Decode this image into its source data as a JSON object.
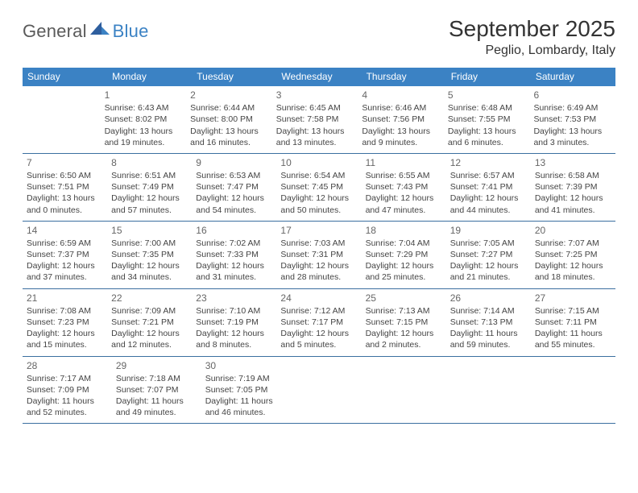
{
  "logo": {
    "general": "General",
    "blue": "Blue"
  },
  "title": "September 2025",
  "location": "Peglio, Lombardy, Italy",
  "colors": {
    "header_bg": "#3b82c4",
    "header_text": "#ffffff",
    "border": "#3b6fa0",
    "text": "#444444",
    "day_number": "#666666",
    "logo_gray": "#5a5a5a",
    "logo_blue": "#3b82c4",
    "background": "#ffffff"
  },
  "weekdays": [
    "Sunday",
    "Monday",
    "Tuesday",
    "Wednesday",
    "Thursday",
    "Friday",
    "Saturday"
  ],
  "weeks": [
    [
      null,
      {
        "n": "1",
        "sr": "Sunrise: 6:43 AM",
        "ss": "Sunset: 8:02 PM",
        "dl1": "Daylight: 13 hours",
        "dl2": "and 19 minutes."
      },
      {
        "n": "2",
        "sr": "Sunrise: 6:44 AM",
        "ss": "Sunset: 8:00 PM",
        "dl1": "Daylight: 13 hours",
        "dl2": "and 16 minutes."
      },
      {
        "n": "3",
        "sr": "Sunrise: 6:45 AM",
        "ss": "Sunset: 7:58 PM",
        "dl1": "Daylight: 13 hours",
        "dl2": "and 13 minutes."
      },
      {
        "n": "4",
        "sr": "Sunrise: 6:46 AM",
        "ss": "Sunset: 7:56 PM",
        "dl1": "Daylight: 13 hours",
        "dl2": "and 9 minutes."
      },
      {
        "n": "5",
        "sr": "Sunrise: 6:48 AM",
        "ss": "Sunset: 7:55 PM",
        "dl1": "Daylight: 13 hours",
        "dl2": "and 6 minutes."
      },
      {
        "n": "6",
        "sr": "Sunrise: 6:49 AM",
        "ss": "Sunset: 7:53 PM",
        "dl1": "Daylight: 13 hours",
        "dl2": "and 3 minutes."
      }
    ],
    [
      {
        "n": "7",
        "sr": "Sunrise: 6:50 AM",
        "ss": "Sunset: 7:51 PM",
        "dl1": "Daylight: 13 hours",
        "dl2": "and 0 minutes."
      },
      {
        "n": "8",
        "sr": "Sunrise: 6:51 AM",
        "ss": "Sunset: 7:49 PM",
        "dl1": "Daylight: 12 hours",
        "dl2": "and 57 minutes."
      },
      {
        "n": "9",
        "sr": "Sunrise: 6:53 AM",
        "ss": "Sunset: 7:47 PM",
        "dl1": "Daylight: 12 hours",
        "dl2": "and 54 minutes."
      },
      {
        "n": "10",
        "sr": "Sunrise: 6:54 AM",
        "ss": "Sunset: 7:45 PM",
        "dl1": "Daylight: 12 hours",
        "dl2": "and 50 minutes."
      },
      {
        "n": "11",
        "sr": "Sunrise: 6:55 AM",
        "ss": "Sunset: 7:43 PM",
        "dl1": "Daylight: 12 hours",
        "dl2": "and 47 minutes."
      },
      {
        "n": "12",
        "sr": "Sunrise: 6:57 AM",
        "ss": "Sunset: 7:41 PM",
        "dl1": "Daylight: 12 hours",
        "dl2": "and 44 minutes."
      },
      {
        "n": "13",
        "sr": "Sunrise: 6:58 AM",
        "ss": "Sunset: 7:39 PM",
        "dl1": "Daylight: 12 hours",
        "dl2": "and 41 minutes."
      }
    ],
    [
      {
        "n": "14",
        "sr": "Sunrise: 6:59 AM",
        "ss": "Sunset: 7:37 PM",
        "dl1": "Daylight: 12 hours",
        "dl2": "and 37 minutes."
      },
      {
        "n": "15",
        "sr": "Sunrise: 7:00 AM",
        "ss": "Sunset: 7:35 PM",
        "dl1": "Daylight: 12 hours",
        "dl2": "and 34 minutes."
      },
      {
        "n": "16",
        "sr": "Sunrise: 7:02 AM",
        "ss": "Sunset: 7:33 PM",
        "dl1": "Daylight: 12 hours",
        "dl2": "and 31 minutes."
      },
      {
        "n": "17",
        "sr": "Sunrise: 7:03 AM",
        "ss": "Sunset: 7:31 PM",
        "dl1": "Daylight: 12 hours",
        "dl2": "and 28 minutes."
      },
      {
        "n": "18",
        "sr": "Sunrise: 7:04 AM",
        "ss": "Sunset: 7:29 PM",
        "dl1": "Daylight: 12 hours",
        "dl2": "and 25 minutes."
      },
      {
        "n": "19",
        "sr": "Sunrise: 7:05 AM",
        "ss": "Sunset: 7:27 PM",
        "dl1": "Daylight: 12 hours",
        "dl2": "and 21 minutes."
      },
      {
        "n": "20",
        "sr": "Sunrise: 7:07 AM",
        "ss": "Sunset: 7:25 PM",
        "dl1": "Daylight: 12 hours",
        "dl2": "and 18 minutes."
      }
    ],
    [
      {
        "n": "21",
        "sr": "Sunrise: 7:08 AM",
        "ss": "Sunset: 7:23 PM",
        "dl1": "Daylight: 12 hours",
        "dl2": "and 15 minutes."
      },
      {
        "n": "22",
        "sr": "Sunrise: 7:09 AM",
        "ss": "Sunset: 7:21 PM",
        "dl1": "Daylight: 12 hours",
        "dl2": "and 12 minutes."
      },
      {
        "n": "23",
        "sr": "Sunrise: 7:10 AM",
        "ss": "Sunset: 7:19 PM",
        "dl1": "Daylight: 12 hours",
        "dl2": "and 8 minutes."
      },
      {
        "n": "24",
        "sr": "Sunrise: 7:12 AM",
        "ss": "Sunset: 7:17 PM",
        "dl1": "Daylight: 12 hours",
        "dl2": "and 5 minutes."
      },
      {
        "n": "25",
        "sr": "Sunrise: 7:13 AM",
        "ss": "Sunset: 7:15 PM",
        "dl1": "Daylight: 12 hours",
        "dl2": "and 2 minutes."
      },
      {
        "n": "26",
        "sr": "Sunrise: 7:14 AM",
        "ss": "Sunset: 7:13 PM",
        "dl1": "Daylight: 11 hours",
        "dl2": "and 59 minutes."
      },
      {
        "n": "27",
        "sr": "Sunrise: 7:15 AM",
        "ss": "Sunset: 7:11 PM",
        "dl1": "Daylight: 11 hours",
        "dl2": "and 55 minutes."
      }
    ],
    [
      {
        "n": "28",
        "sr": "Sunrise: 7:17 AM",
        "ss": "Sunset: 7:09 PM",
        "dl1": "Daylight: 11 hours",
        "dl2": "and 52 minutes."
      },
      {
        "n": "29",
        "sr": "Sunrise: 7:18 AM",
        "ss": "Sunset: 7:07 PM",
        "dl1": "Daylight: 11 hours",
        "dl2": "and 49 minutes."
      },
      {
        "n": "30",
        "sr": "Sunrise: 7:19 AM",
        "ss": "Sunset: 7:05 PM",
        "dl1": "Daylight: 11 hours",
        "dl2": "and 46 minutes."
      },
      null,
      null,
      null,
      null
    ]
  ]
}
